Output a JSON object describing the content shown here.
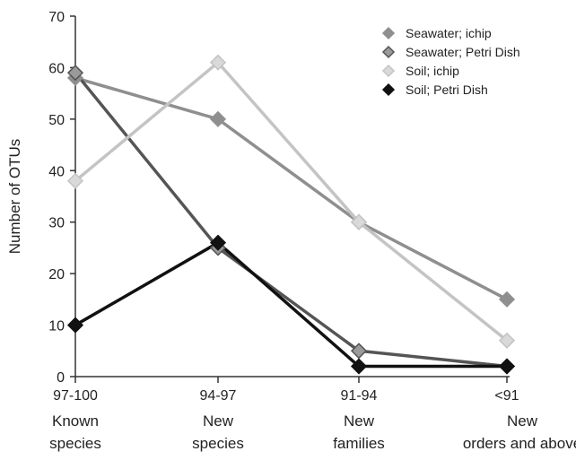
{
  "chart_data": {
    "type": "line",
    "categories": [
      "97-100",
      "94-97",
      "91-94",
      "<91"
    ],
    "category_sublabels": [
      [
        "Known",
        "species"
      ],
      [
        "New",
        "species"
      ],
      [
        "New",
        "families"
      ],
      [
        "New",
        "orders and above"
      ]
    ],
    "ylabel": "Number of OTUs",
    "ylim": [
      0,
      70
    ],
    "yticks": [
      0,
      10,
      20,
      30,
      40,
      50,
      60,
      70
    ],
    "grid": false,
    "legend_position": "top-right",
    "series": [
      {
        "name": "Seawater; ichip",
        "values": [
          58,
          50,
          30,
          15
        ],
        "color": "#8f8f8f",
        "marker_fill": "#8f8f8f"
      },
      {
        "name": "Seawater; Petri Dish",
        "values": [
          59,
          25,
          5,
          2
        ],
        "color": "#555555",
        "marker_fill": "#9a9a9a"
      },
      {
        "name": "Soil;  ichip",
        "values": [
          38,
          61,
          30,
          7
        ],
        "color": "#c4c4c4",
        "marker_fill": "#d9d9d9"
      },
      {
        "name": "Soil; Petri Dish",
        "values": [
          10,
          26,
          2,
          2
        ],
        "color": "#111111",
        "marker_fill": "#111111"
      }
    ]
  }
}
